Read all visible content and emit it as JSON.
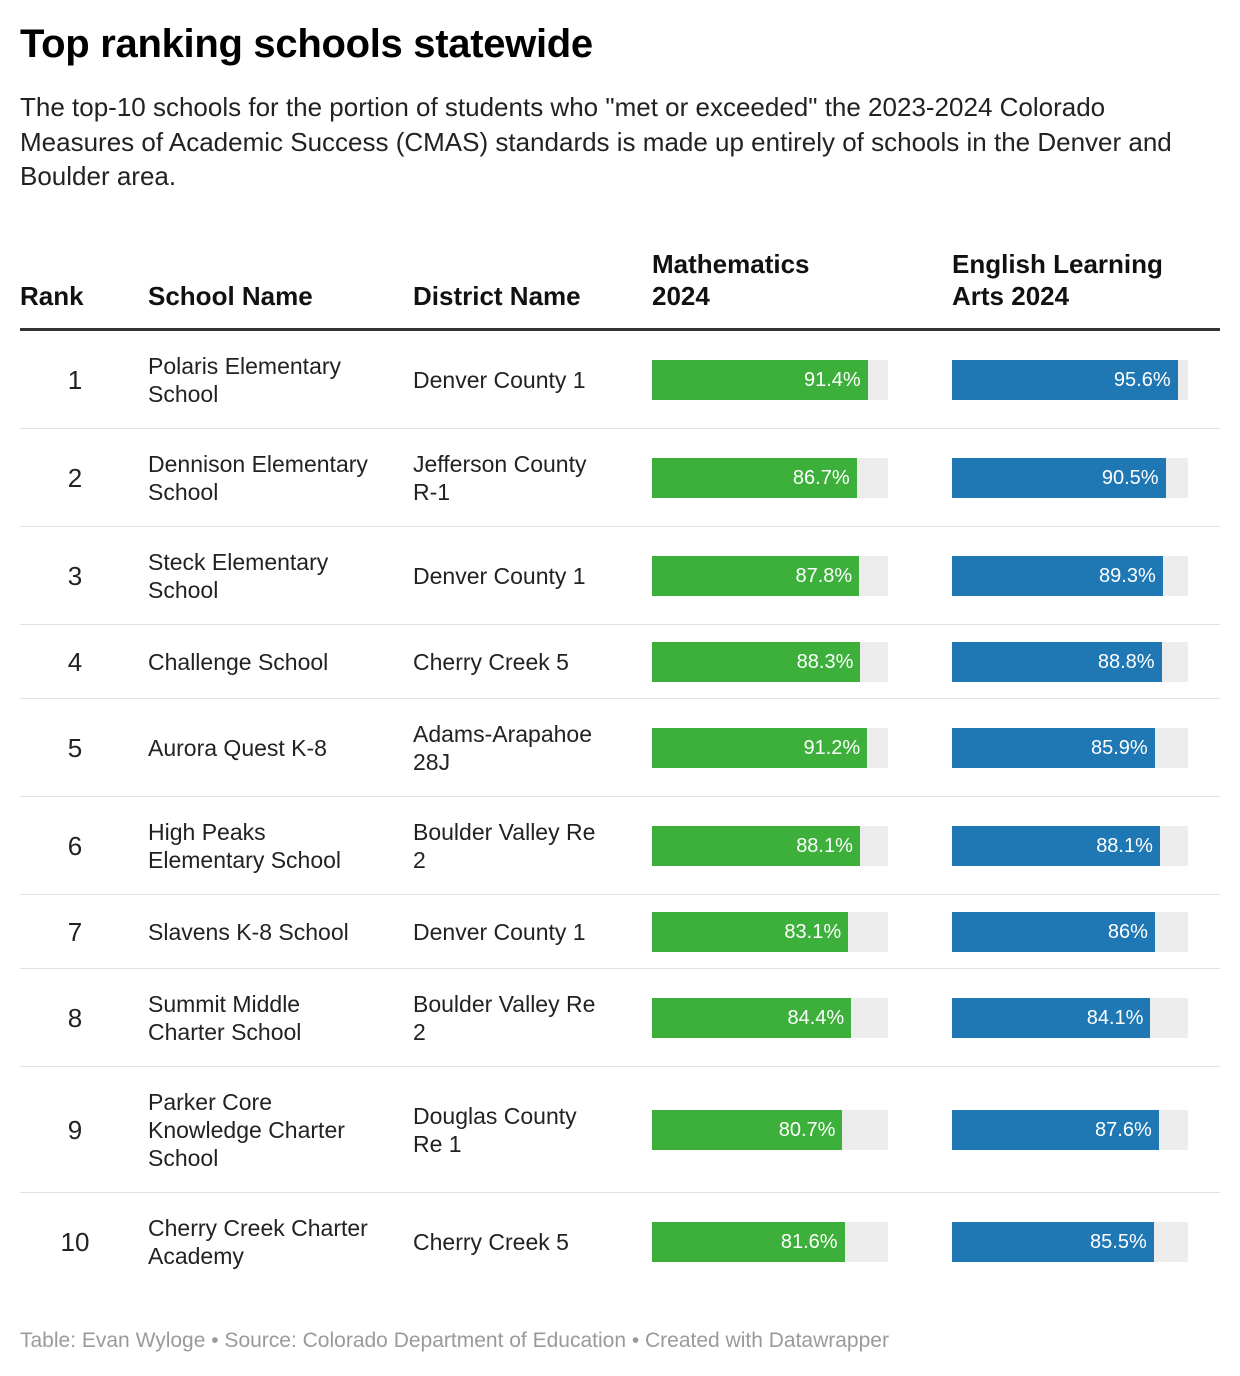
{
  "title": "Top ranking schools statewide",
  "subtitle": "The top-10 schools for the portion of students who \"met or exceeded\" the 2023-2024 Colorado Measures of Academic Success (CMAS) standards is made up entirely of schools in the Denver and Boulder area.",
  "columns": {
    "rank": "Rank",
    "school": "School Name",
    "district": "District Name",
    "math": "Mathematics 2024",
    "ela": "English Learning Arts 2024"
  },
  "colors": {
    "math": "#3db03b",
    "ela": "#1f78b4",
    "track": "#ececec"
  },
  "chart_data": {
    "type": "table",
    "title": "Top ranking schools statewide",
    "columns": [
      "Rank",
      "School Name",
      "District Name",
      "Mathematics 2024",
      "English Learning Arts 2024"
    ],
    "value_max": 100,
    "rows": [
      {
        "rank": "1",
        "school": "Polaris Elementary School",
        "district": "Denver County 1",
        "math": 91.4,
        "math_label": "91.4%",
        "ela": 95.6,
        "ela_label": "95.6%"
      },
      {
        "rank": "2",
        "school": "Dennison Elementary School",
        "district": "Jefferson County R-1",
        "math": 86.7,
        "math_label": "86.7%",
        "ela": 90.5,
        "ela_label": "90.5%"
      },
      {
        "rank": "3",
        "school": "Steck Elementary School",
        "district": "Denver County 1",
        "math": 87.8,
        "math_label": "87.8%",
        "ela": 89.3,
        "ela_label": "89.3%"
      },
      {
        "rank": "4",
        "school": "Challenge School",
        "district": "Cherry Creek 5",
        "math": 88.3,
        "math_label": "88.3%",
        "ela": 88.8,
        "ela_label": "88.8%"
      },
      {
        "rank": "5",
        "school": "Aurora Quest K-8",
        "district": "Adams-Arapahoe 28J",
        "math": 91.2,
        "math_label": "91.2%",
        "ela": 85.9,
        "ela_label": "85.9%"
      },
      {
        "rank": "6",
        "school": "High Peaks Elementary School",
        "district": "Boulder Valley Re 2",
        "math": 88.1,
        "math_label": "88.1%",
        "ela": 88.1,
        "ela_label": "88.1%"
      },
      {
        "rank": "7",
        "school": "Slavens K-8 School",
        "district": "Denver County 1",
        "math": 83.1,
        "math_label": "83.1%",
        "ela": 86,
        "ela_label": "86%"
      },
      {
        "rank": "8",
        "school": "Summit Middle Charter School",
        "district": "Boulder Valley Re 2",
        "math": 84.4,
        "math_label": "84.4%",
        "ela": 84.1,
        "ela_label": "84.1%"
      },
      {
        "rank": "9",
        "school": "Parker Core Knowledge Charter School",
        "district": "Douglas County Re 1",
        "math": 80.7,
        "math_label": "80.7%",
        "ela": 87.6,
        "ela_label": "87.6%"
      },
      {
        "rank": "10",
        "school": "Cherry Creek Charter Academy",
        "district": "Cherry Creek 5",
        "math": 81.6,
        "math_label": "81.6%",
        "ela": 85.5,
        "ela_label": "85.5%"
      }
    ]
  },
  "footer": "Table: Evan Wyloge • Source: Colorado Department of Education • Created with Datawrapper"
}
